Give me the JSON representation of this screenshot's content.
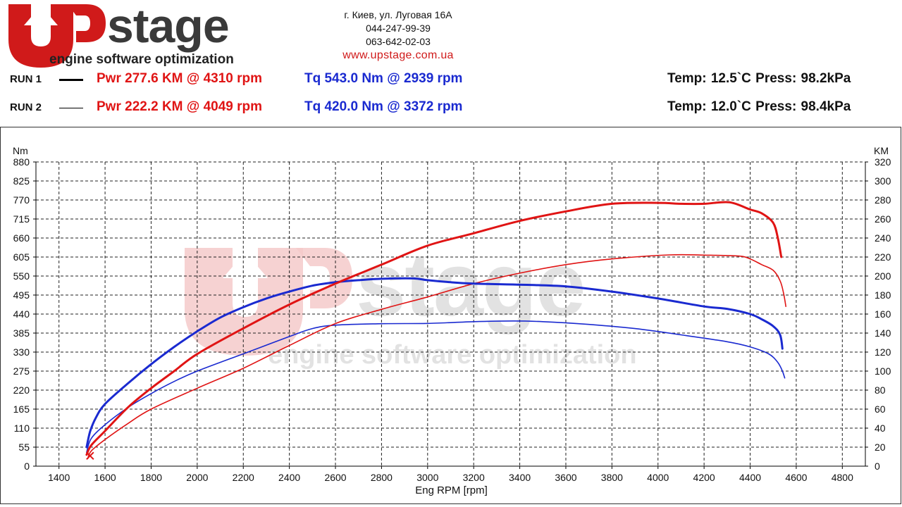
{
  "header": {
    "logo": {
      "brand_text": "stage",
      "tagline": "engine software optimization"
    },
    "contact": {
      "address": "г. Киев, ул. Луговая 16А",
      "phone1": "044-247-99-39",
      "phone2": "063-642-02-03",
      "website": "www.upstage.com.ua"
    }
  },
  "runs": [
    {
      "label": "RUN 1",
      "pwr": "Pwr  277.6 KM @ 4310 rpm",
      "tq": "Tq 543.0 Nm @ 2939 rpm",
      "env": "Temp: 12.5`C    Press: 98.2kPa"
    },
    {
      "label": "RUN 2",
      "pwr": "Pwr  222.2 KM @ 4049 rpm",
      "tq": "Tq 420.0 Nm @ 3372 rpm",
      "env": "Temp: 12.0`C    Press: 98.4kPa"
    }
  ],
  "colors": {
    "power": "#e01414",
    "torque": "#1a2ad0",
    "watermark": "#d9d9d9",
    "watermark_red": "#f4caca"
  },
  "watermark": {
    "brand_text": "stage",
    "tagline": "engine software optimization"
  },
  "chart_data": {
    "type": "line",
    "xlabel": "Eng RPM [rpm]",
    "ylabel_left": "Nm",
    "ylabel_right": "KM",
    "xlim": [
      1300,
      4900
    ],
    "ylim_left": [
      0,
      880
    ],
    "ylim_right": [
      0,
      320
    ],
    "x_ticks": [
      1400,
      1600,
      1800,
      2000,
      2200,
      2400,
      2600,
      2800,
      3000,
      3200,
      3400,
      3600,
      3800,
      4000,
      4200,
      4400,
      4600,
      4800
    ],
    "y_ticks_left": [
      0,
      55,
      110,
      165,
      220,
      275,
      330,
      385,
      440,
      495,
      550,
      605,
      660,
      715,
      770,
      825,
      880
    ],
    "y_ticks_right": [
      0,
      20,
      40,
      60,
      80,
      100,
      120,
      140,
      160,
      180,
      200,
      220,
      240,
      260,
      280,
      300,
      320
    ],
    "grid": true,
    "series": [
      {
        "name": "RUN 1",
        "type": "torque",
        "axis": "left",
        "thick": true,
        "x": [
          1520,
          1535,
          1560,
          1600,
          1700,
          1800,
          1900,
          2000,
          2100,
          2200,
          2300,
          2400,
          2500,
          2600,
          2700,
          2800,
          2939,
          3000,
          3100,
          3200,
          3400,
          3600,
          3800,
          4000,
          4200,
          4300,
          4400,
          4450,
          4500,
          4530,
          4540
        ],
        "y": [
          55,
          100,
          140,
          180,
          240,
          295,
          345,
          390,
          430,
          460,
          485,
          505,
          522,
          532,
          538,
          542,
          543,
          538,
          532,
          528,
          525,
          520,
          505,
          485,
          462,
          455,
          440,
          425,
          405,
          380,
          340
        ]
      },
      {
        "name": "RUN 2",
        "type": "torque",
        "axis": "left",
        "thick": false,
        "x": [
          1520,
          1540,
          1600,
          1700,
          1800,
          1900,
          2000,
          2200,
          2400,
          2500,
          2600,
          2800,
          3000,
          3200,
          3372,
          3500,
          3700,
          3900,
          4100,
          4300,
          4400,
          4480,
          4520,
          4540,
          4550
        ],
        "y": [
          40,
          80,
          120,
          170,
          210,
          245,
          275,
          325,
          375,
          398,
          408,
          412,
          413,
          418,
          420,
          418,
          410,
          398,
          380,
          360,
          345,
          325,
          300,
          275,
          255
        ]
      },
      {
        "name": "RUN 1",
        "type": "power",
        "axis": "right",
        "thick": true,
        "x": [
          1520,
          1540,
          1600,
          1700,
          1800,
          1900,
          2000,
          2200,
          2400,
          2600,
          2800,
          3000,
          3200,
          3400,
          3600,
          3800,
          4000,
          4100,
          4200,
          4310,
          4400,
          4450,
          4500,
          4520,
          4535
        ],
        "y": [
          12,
          22,
          37,
          62,
          82,
          100,
          118,
          145,
          170,
          192,
          212,
          232,
          245,
          258,
          268,
          276,
          277,
          276,
          276,
          277.6,
          270,
          266,
          256,
          240,
          220
        ]
      },
      {
        "name": "RUN 2",
        "type": "power",
        "axis": "right",
        "thick": false,
        "x": [
          1525,
          1540,
          1600,
          1700,
          1800,
          2000,
          2200,
          2400,
          2600,
          2800,
          3000,
          3200,
          3400,
          3600,
          3800,
          4049,
          4200,
          4350,
          4400,
          4450,
          4500,
          4530,
          4545,
          4555
        ],
        "y": [
          8,
          16,
          28,
          45,
          60,
          82,
          103,
          127,
          150,
          165,
          178,
          192,
          203,
          212,
          218,
          222.2,
          222,
          221,
          218,
          212,
          206,
          195,
          182,
          168
        ]
      }
    ]
  }
}
